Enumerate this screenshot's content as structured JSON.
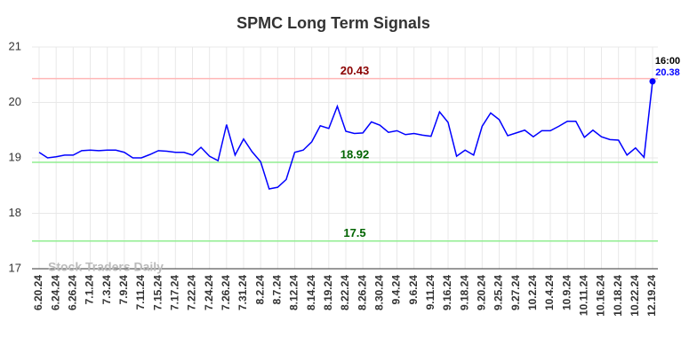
{
  "chart_data": {
    "type": "line",
    "title": "SPMC Long Term Signals",
    "categories": [
      "6.20.24",
      null,
      "6.24.24",
      null,
      "6.26.24",
      null,
      "7.1.24",
      null,
      "7.3.24",
      null,
      "7.9.24",
      null,
      "7.11.24",
      null,
      "7.15.24",
      null,
      "7.17.24",
      null,
      "7.22.24",
      null,
      "7.24.24",
      null,
      "7.26.24",
      null,
      "7.31.24",
      null,
      "8.2.24",
      null,
      "8.7.24",
      null,
      "8.12.24",
      null,
      "8.14.24",
      null,
      "8.19.24",
      null,
      "8.22.24",
      null,
      "8.26.24",
      null,
      "8.30.24",
      null,
      "9.4.24",
      null,
      "9.6.24",
      null,
      "9.11.24",
      null,
      "9.16.24",
      null,
      "9.18.24",
      null,
      "9.20.24",
      null,
      "9.25.24",
      null,
      "9.27.24",
      null,
      "10.2.24",
      null,
      "10.4.24",
      null,
      "10.9.24",
      null,
      "10.11.24",
      null,
      "10.16.24",
      null,
      "10.18.24",
      null,
      "10.22.24",
      null,
      "12.19.24"
    ],
    "values": [
      19.1,
      19.0,
      19.02,
      19.05,
      19.05,
      19.13,
      19.14,
      19.13,
      19.14,
      19.14,
      19.1,
      19.0,
      19.0,
      19.06,
      19.13,
      19.12,
      19.1,
      19.1,
      19.05,
      19.19,
      19.03,
      18.95,
      19.6,
      19.05,
      19.34,
      19.11,
      18.93,
      18.44,
      18.47,
      18.61,
      19.1,
      19.14,
      19.29,
      19.58,
      19.53,
      19.93,
      19.48,
      19.44,
      19.45,
      19.65,
      19.59,
      19.46,
      19.49,
      19.42,
      19.44,
      19.41,
      19.39,
      19.83,
      19.64,
      19.03,
      19.14,
      19.05,
      19.57,
      19.81,
      19.69,
      19.4,
      19.45,
      19.5,
      19.38,
      19.49,
      19.49,
      19.57,
      19.66,
      19.66,
      19.37,
      19.5,
      19.38,
      19.33,
      19.32,
      19.05,
      19.18,
      19.01,
      20.38
    ],
    "color": "#0000ff",
    "ylim": [
      17,
      21
    ],
    "yticks": [
      17,
      18,
      19,
      20,
      21
    ],
    "grid": true,
    "hlines": [
      {
        "value": 20.43,
        "color": "#ffb6b6",
        "label_color": "#8b0000"
      },
      {
        "value": 18.92,
        "color": "#90ee90",
        "label_color": "#006400"
      },
      {
        "value": 17.5,
        "color": "#90ee90",
        "label_color": "#006400"
      }
    ],
    "last_time": "16:00",
    "watermark": "Stock Traders Daily"
  }
}
